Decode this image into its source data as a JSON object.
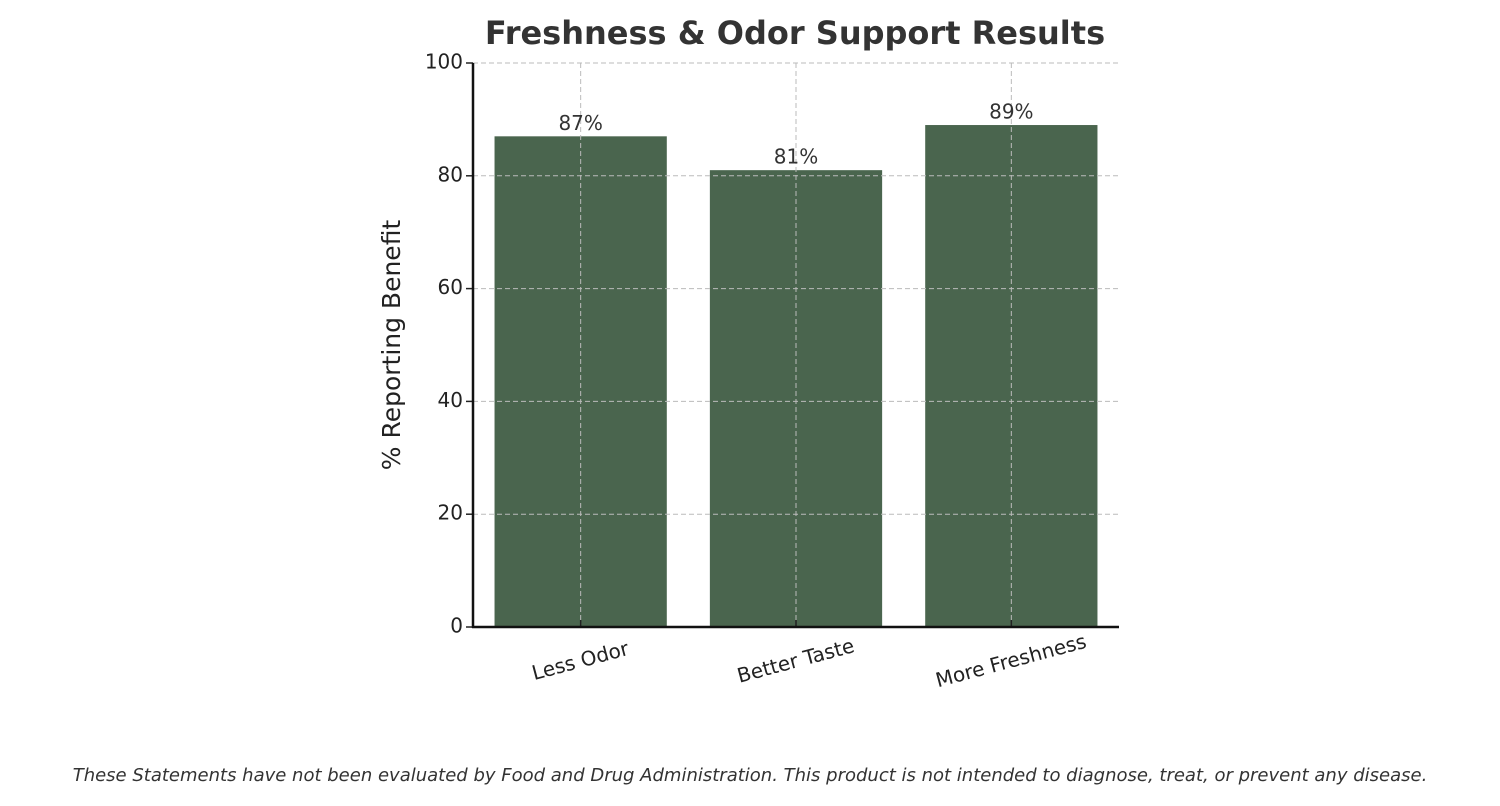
{
  "chart_data": {
    "type": "bar",
    "title": "Freshness & Odor Support Results",
    "y_label": "% Reporting Benefit",
    "categories": [
      "Less Odor",
      "Better Taste",
      "More Freshness"
    ],
    "values": [
      87,
      81,
      89
    ],
    "value_labels": [
      "87%",
      "81%",
      "89%"
    ],
    "color": "#4a654e",
    "ylim": [
      0,
      100
    ],
    "yticks": [
      0,
      20,
      40,
      60,
      80,
      100
    ],
    "grid": true,
    "footnote": "These Statements have not been evaluated by Food and Drug Administration. This product is not intended to diagnose, treat, or prevent any disease."
  }
}
